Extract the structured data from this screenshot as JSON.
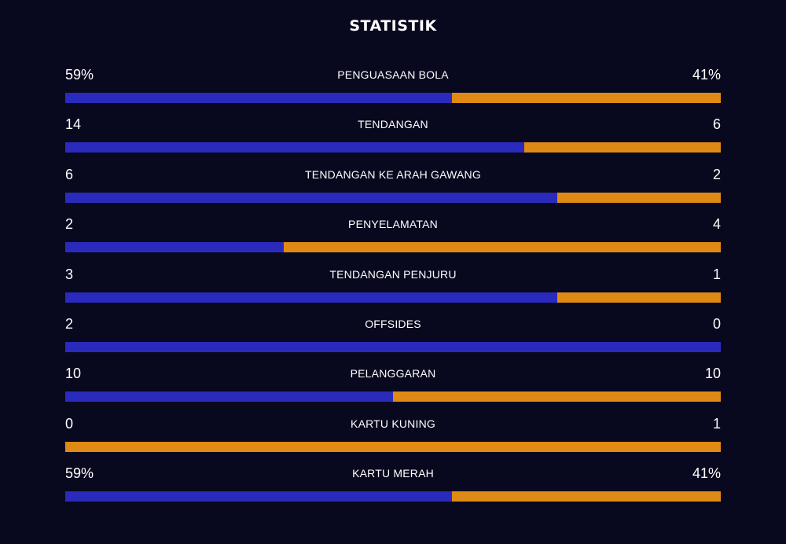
{
  "title": "STATISTIK",
  "colors": {
    "background": "#08081f",
    "home": "#2a2bbd",
    "away": "#e08a16"
  },
  "stats": [
    {
      "label": "PENGUASAAN BOLA",
      "home": "59%",
      "away": "41%",
      "home_share": 0.59
    },
    {
      "label": "TENDANGAN",
      "home": "14",
      "away": "6",
      "home_share": 0.7
    },
    {
      "label": "TENDANGAN KE ARAH GAWANG",
      "home": "6",
      "away": "2",
      "home_share": 0.75
    },
    {
      "label": "PENYELAMATAN",
      "home": "2",
      "away": "4",
      "home_share": 0.3333
    },
    {
      "label": "TENDANGAN PENJURU",
      "home": "3",
      "away": "1",
      "home_share": 0.75
    },
    {
      "label": "OFFSIDES",
      "home": "2",
      "away": "0",
      "home_share": 1.0
    },
    {
      "label": "PELANGGARAN",
      "home": "10",
      "away": "10",
      "home_share": 0.5
    },
    {
      "label": "KARTU KUNING",
      "home": "0",
      "away": "1",
      "home_share": 0.0
    },
    {
      "label": "KARTU MERAH",
      "home": "59%",
      "away": "41%",
      "home_share": 0.59
    }
  ]
}
